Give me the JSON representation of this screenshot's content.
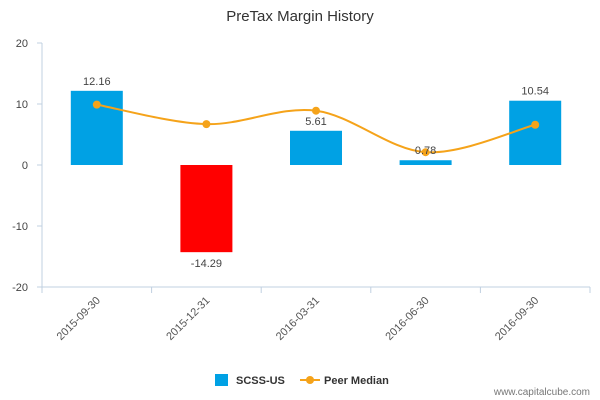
{
  "chart_data": {
    "type": "bar",
    "title": "PreTax Margin History",
    "categories": [
      "2015-09-30",
      "2015-12-31",
      "2016-03-31",
      "2016-06-30",
      "2016-09-30"
    ],
    "series": [
      {
        "name": "SCSS-US",
        "type": "bar",
        "values": [
          12.16,
          -14.29,
          5.61,
          0.78,
          10.54
        ],
        "color": "#00a1e4",
        "negative_color": "#ff0000",
        "data_labels": [
          "12.16",
          "-14.29",
          "5.61",
          "0.78",
          "10.54"
        ]
      },
      {
        "name": "Peer Median",
        "type": "line",
        "values": [
          9.9,
          6.7,
          8.9,
          2.1,
          6.6
        ],
        "color": "#f5a31a"
      }
    ],
    "ylim": [
      -20,
      20
    ],
    "yticks": [
      -20,
      -10,
      0,
      10,
      20
    ],
    "ytick_labels": [
      "-20",
      "-10",
      "0",
      "10",
      "20"
    ],
    "legend_position": "bottom-center",
    "grid": false
  },
  "watermark": "www.capitalcube.com"
}
